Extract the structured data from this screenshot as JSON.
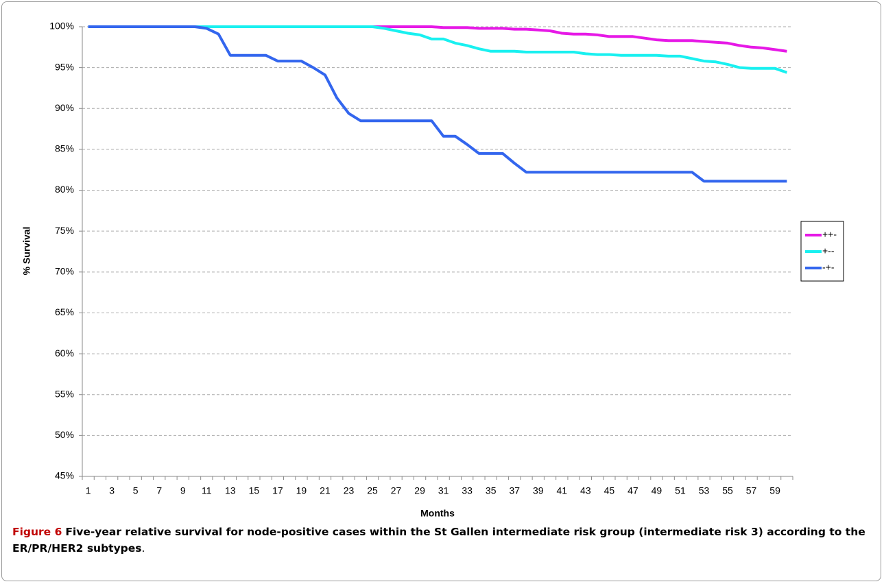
{
  "chart_data": {
    "type": "line",
    "ylabel": "% Survival",
    "xlabel": "Months",
    "categories": [
      "1",
      null,
      "3",
      null,
      "5",
      null,
      "7",
      null,
      "9",
      null,
      "11",
      null,
      "13",
      null,
      "15",
      null,
      "17",
      null,
      "19",
      null,
      "21",
      null,
      "23",
      null,
      "25",
      null,
      "27",
      null,
      "29",
      null,
      "31",
      null,
      "33",
      null,
      "35",
      null,
      "37",
      null,
      "39",
      null,
      "41",
      null,
      "43",
      null,
      "45",
      null,
      "47",
      null,
      "49",
      null,
      "51",
      null,
      "53",
      null,
      "55",
      null,
      "57",
      null,
      "59",
      null
    ],
    "ylim": [
      45,
      100
    ],
    "yticks": [
      {
        "value": 45,
        "label": "45%"
      },
      {
        "value": 50,
        "label": "50%"
      },
      {
        "value": 55,
        "label": "55%"
      },
      {
        "value": 60,
        "label": "60%"
      },
      {
        "value": 65,
        "label": "65%"
      },
      {
        "value": 70,
        "label": "70%"
      },
      {
        "value": 75,
        "label": "75%"
      },
      {
        "value": 80,
        "label": "80%"
      },
      {
        "value": 85,
        "label": "85%"
      },
      {
        "value": 90,
        "label": "90%"
      },
      {
        "value": 95,
        "label": "95%"
      },
      {
        "value": 100,
        "label": "100%"
      }
    ],
    "grid": true,
    "legend": "right",
    "series": [
      {
        "name": "++-",
        "color": "#e619e6",
        "values": [
          100,
          100,
          100,
          100,
          100,
          100,
          100,
          100,
          100,
          100,
          100,
          100,
          100,
          100,
          100,
          100,
          100,
          100,
          100,
          100,
          100,
          100,
          100,
          100,
          100,
          100,
          100,
          100,
          100,
          100,
          99.9,
          99.9,
          99.9,
          99.8,
          99.8,
          99.8,
          99.7,
          99.7,
          99.6,
          99.5,
          99.2,
          99.1,
          99.1,
          99.0,
          98.8,
          98.8,
          98.8,
          98.6,
          98.4,
          98.3,
          98.3,
          98.3,
          98.2,
          98.1,
          98.0,
          97.7,
          97.5,
          97.4,
          97.2,
          97.0
        ]
      },
      {
        "name": "+--",
        "color": "#19f0f0",
        "values": [
          100,
          100,
          100,
          100,
          100,
          100,
          100,
          100,
          100,
          100,
          100,
          100,
          100,
          100,
          100,
          100,
          100,
          100,
          100,
          100,
          100,
          100,
          100,
          100,
          100,
          99.8,
          99.5,
          99.2,
          99.0,
          98.5,
          98.5,
          98.0,
          97.7,
          97.3,
          97.0,
          97.0,
          97.0,
          96.9,
          96.9,
          96.9,
          96.9,
          96.9,
          96.7,
          96.6,
          96.6,
          96.5,
          96.5,
          96.5,
          96.5,
          96.4,
          96.4,
          96.1,
          95.8,
          95.7,
          95.4,
          95.0,
          94.9,
          94.9,
          94.9,
          94.4
        ]
      },
      {
        "name": "-+-",
        "color": "#3366ee",
        "values": [
          100,
          100,
          100,
          100,
          100,
          100,
          100,
          100,
          100,
          100,
          99.8,
          99.1,
          96.5,
          96.5,
          96.5,
          96.5,
          95.8,
          95.8,
          95.8,
          95.0,
          94.1,
          91.3,
          89.4,
          88.5,
          88.5,
          88.5,
          88.5,
          88.5,
          88.5,
          88.5,
          86.6,
          86.6,
          85.6,
          84.5,
          84.5,
          84.5,
          83.3,
          82.2,
          82.2,
          82.2,
          82.2,
          82.2,
          82.2,
          82.2,
          82.2,
          82.2,
          82.2,
          82.2,
          82.2,
          82.2,
          82.2,
          82.2,
          81.1,
          81.1,
          81.1,
          81.1,
          81.1,
          81.1,
          81.1,
          81.1
        ]
      }
    ],
    "caption": {
      "label": "Figure 6",
      "text": "Five-year relative survival for node-positive cases within the St Gallen intermediate risk group (intermediate risk 3) according to the ER/PR/HER2 subtypes",
      "end": "."
    }
  }
}
